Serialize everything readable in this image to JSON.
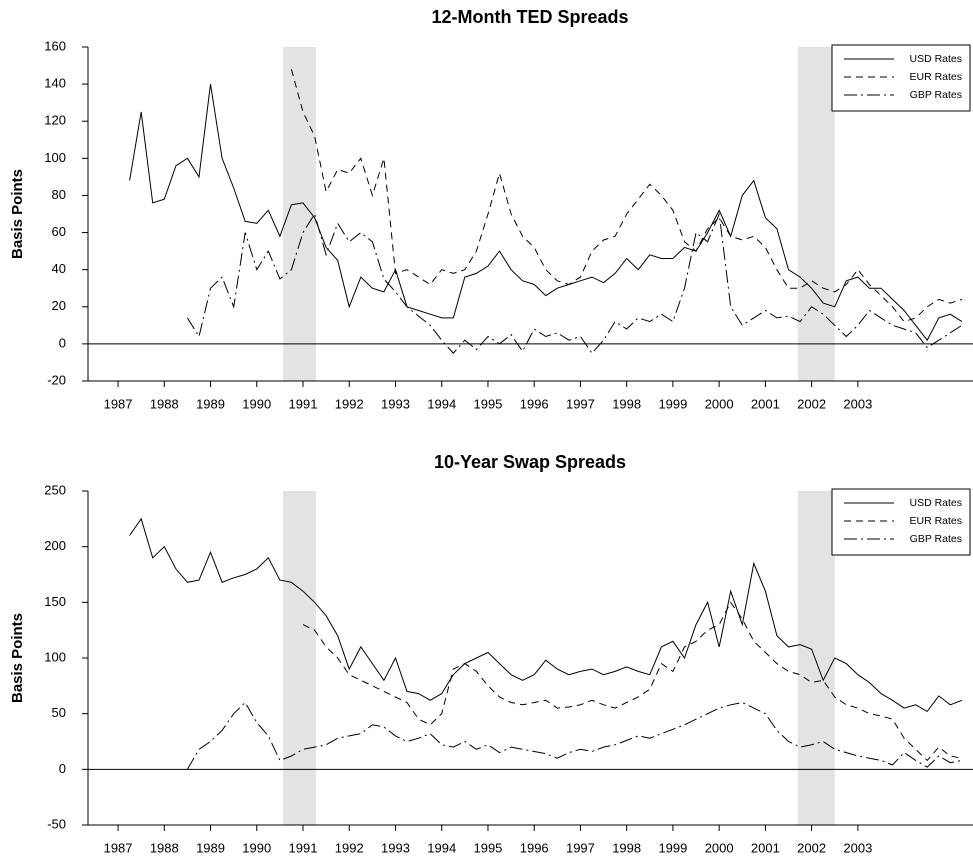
{
  "chart_data": [
    {
      "type": "line",
      "title": "12-Month TED Spreads",
      "y_label": "Basis Points",
      "x": [
        1987.25,
        1987.5,
        1987.75,
        1988,
        1988.25,
        1988.5,
        1988.75,
        1989,
        1989.25,
        1989.5,
        1989.75,
        1990,
        1990.25,
        1990.5,
        1990.75,
        1991,
        1991.25,
        1991.5,
        1991.75,
        1992,
        1992.25,
        1992.5,
        1992.75,
        1993,
        1993.25,
        1993.5,
        1993.75,
        1994,
        1994.25,
        1994.5,
        1994.75,
        1995,
        1995.25,
        1995.5,
        1995.75,
        1996,
        1996.25,
        1996.5,
        1996.75,
        1997,
        1997.25,
        1997.5,
        1997.75,
        1998,
        1998.25,
        1998.5,
        1998.75,
        1999,
        1999.25,
        1999.5,
        1999.75,
        2000,
        2000.25,
        2000.5,
        2000.75,
        2001,
        2001.25,
        2001.5,
        2001.75,
        2002,
        2002.25,
        2002.5,
        2002.75,
        2003,
        2003.25,
        2003.5,
        2003.75,
        2004,
        2004.25,
        2004.5,
        2004.75,
        2005,
        2005.25
      ],
      "series": [
        {
          "name": "USD Rates",
          "color": "#000000",
          "linestyle": "solid",
          "values": [
            88,
            125,
            76,
            78,
            96,
            100,
            90,
            140,
            100,
            84,
            66,
            65,
            72,
            58,
            75,
            76,
            68,
            52,
            45,
            20,
            36,
            30,
            28,
            40,
            20,
            18,
            16,
            14,
            14,
            36,
            38,
            42,
            50,
            40,
            34,
            32,
            26,
            30,
            32,
            34,
            36,
            33,
            38,
            46,
            40,
            48,
            46,
            46,
            52,
            50,
            60,
            72,
            58,
            80,
            88,
            68,
            62,
            40,
            36,
            30,
            22,
            20,
            34,
            36,
            30,
            30,
            24,
            18,
            10,
            2,
            14,
            16,
            12
          ]
        },
        {
          "name": "EUR Rates",
          "color": "#000000",
          "linestyle": "dashed",
          "values": [
            null,
            null,
            null,
            null,
            null,
            null,
            null,
            null,
            null,
            null,
            null,
            null,
            null,
            null,
            148,
            125,
            112,
            82,
            94,
            92,
            100,
            80,
            100,
            38,
            40,
            36,
            32,
            40,
            38,
            40,
            50,
            70,
            92,
            70,
            58,
            52,
            40,
            34,
            32,
            36,
            50,
            56,
            58,
            70,
            78,
            86,
            80,
            72,
            55,
            50,
            62,
            68,
            58,
            56,
            58,
            52,
            40,
            30,
            30,
            34,
            30,
            28,
            32,
            40,
            32,
            26,
            20,
            12,
            14,
            20,
            24,
            22,
            24
          ]
        },
        {
          "name": "GBP Rates",
          "color": "#000000",
          "linestyle": "longdash",
          "values": [
            null,
            null,
            null,
            null,
            null,
            14,
            4,
            30,
            36,
            20,
            60,
            40,
            50,
            35,
            40,
            60,
            70,
            48,
            65,
            55,
            60,
            55,
            35,
            28,
            20,
            15,
            10,
            2,
            -5,
            2,
            -3,
            4,
            0,
            5,
            -4,
            8,
            4,
            6,
            2,
            4,
            -5,
            2,
            12,
            8,
            14,
            12,
            16,
            12,
            30,
            60,
            55,
            70,
            20,
            10,
            14,
            18,
            14,
            15,
            12,
            20,
            16,
            10,
            4,
            10,
            18,
            14,
            10,
            8,
            6,
            -2,
            2,
            6,
            10
          ]
        }
      ],
      "xlim": [
        1986.35,
        2005.49
      ],
      "xticks": [
        1987,
        1988,
        1989,
        1990,
        1991,
        1992,
        1993,
        1994,
        1995,
        1996,
        1997,
        1998,
        1999,
        2000,
        2001,
        2002,
        2003
      ],
      "ylim": [
        -20,
        160
      ],
      "yticks": [
        -20,
        0,
        20,
        40,
        60,
        80,
        100,
        120,
        140,
        160
      ],
      "reference_line": 0,
      "shaded_periods": [
        [
          1990.57,
          1991.28
        ],
        [
          2001.7,
          2002.5
        ]
      ],
      "shade_color": "#e3e3e3",
      "legend": "top-right",
      "grid": false
    },
    {
      "type": "line",
      "title": "10-Year Swap Spreads",
      "y_label": "Basis Points",
      "x": [
        1987.25,
        1987.5,
        1987.75,
        1988,
        1988.25,
        1988.5,
        1988.75,
        1989,
        1989.25,
        1989.5,
        1989.75,
        1990,
        1990.25,
        1990.5,
        1990.75,
        1991,
        1991.25,
        1991.5,
        1991.75,
        1992,
        1992.25,
        1992.5,
        1992.75,
        1993,
        1993.25,
        1993.5,
        1993.75,
        1994,
        1994.25,
        1994.5,
        1994.75,
        1995,
        1995.25,
        1995.5,
        1995.75,
        1996,
        1996.25,
        1996.5,
        1996.75,
        1997,
        1997.25,
        1997.5,
        1997.75,
        1998,
        1998.25,
        1998.5,
        1998.75,
        1999,
        1999.25,
        1999.5,
        1999.75,
        2000,
        2000.25,
        2000.5,
        2000.75,
        2001,
        2001.25,
        2001.5,
        2001.75,
        2002,
        2002.25,
        2002.5,
        2002.75,
        2003,
        2003.25,
        2003.5,
        2003.75,
        2004,
        2004.25,
        2004.5,
        2004.75,
        2005,
        2005.25
      ],
      "series": [
        {
          "name": "USD Rates",
          "color": "#000000",
          "linestyle": "solid",
          "values": [
            210,
            225,
            190,
            200,
            180,
            168,
            170,
            195,
            168,
            172,
            175,
            180,
            190,
            170,
            168,
            160,
            150,
            138,
            120,
            90,
            110,
            95,
            80,
            100,
            70,
            68,
            62,
            68,
            85,
            95,
            100,
            105,
            95,
            85,
            80,
            85,
            98,
            90,
            85,
            88,
            90,
            85,
            88,
            92,
            88,
            85,
            110,
            115,
            100,
            130,
            150,
            110,
            160,
            130,
            185,
            160,
            120,
            110,
            112,
            108,
            80,
            100,
            95,
            85,
            78,
            68,
            62,
            55,
            58,
            52,
            66,
            58,
            62
          ]
        },
        {
          "name": "EUR Rates",
          "color": "#000000",
          "linestyle": "dashed",
          "values": [
            null,
            null,
            null,
            null,
            null,
            null,
            null,
            null,
            null,
            null,
            null,
            null,
            null,
            null,
            null,
            130,
            125,
            110,
            100,
            85,
            80,
            75,
            70,
            65,
            60,
            45,
            40,
            50,
            90,
            95,
            88,
            75,
            65,
            60,
            58,
            60,
            62,
            55,
            56,
            58,
            62,
            58,
            55,
            60,
            65,
            72,
            95,
            88,
            110,
            115,
            125,
            130,
            150,
            135,
            115,
            105,
            95,
            88,
            85,
            78,
            80,
            65,
            58,
            55,
            50,
            48,
            45,
            28,
            18,
            8,
            20,
            12,
            10
          ]
        },
        {
          "name": "GBP Rates",
          "color": "#000000",
          "linestyle": "longdash",
          "values": [
            null,
            null,
            null,
            null,
            null,
            0,
            18,
            25,
            35,
            50,
            60,
            42,
            30,
            8,
            12,
            18,
            20,
            22,
            28,
            30,
            32,
            40,
            38,
            30,
            25,
            28,
            32,
            22,
            20,
            25,
            18,
            22,
            15,
            20,
            18,
            16,
            14,
            10,
            15,
            18,
            16,
            20,
            22,
            26,
            30,
            28,
            32,
            36,
            40,
            45,
            50,
            55,
            58,
            60,
            55,
            50,
            35,
            25,
            20,
            22,
            25,
            18,
            15,
            12,
            10,
            8,
            4,
            15,
            8,
            2,
            12,
            6,
            8
          ]
        }
      ],
      "xlim": [
        1986.35,
        2005.49
      ],
      "xticks": [
        1987,
        1988,
        1989,
        1990,
        1991,
        1992,
        1993,
        1994,
        1995,
        1996,
        1997,
        1998,
        1999,
        2000,
        2001,
        2002,
        2003
      ],
      "ylim": [
        -50,
        250
      ],
      "yticks": [
        -50,
        0,
        50,
        100,
        150,
        200,
        250
      ],
      "reference_line": 0,
      "shaded_periods": [
        [
          1990.57,
          1991.28
        ],
        [
          2001.7,
          2002.5
        ]
      ],
      "shade_color": "#e3e3e3",
      "legend": "top-right",
      "grid": false
    }
  ]
}
